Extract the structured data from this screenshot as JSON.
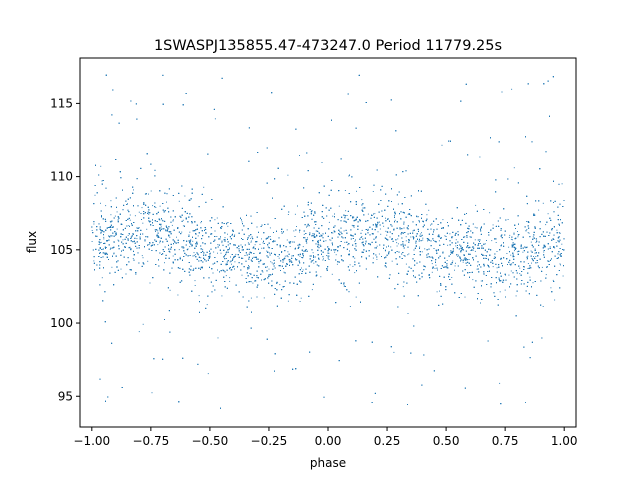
{
  "chart_data": {
    "type": "scatter",
    "title": "1SWASPJ135855.47-473247.0 Period 11779.25s",
    "xlabel": "phase",
    "ylabel": "flux",
    "xlim": [
      -1.05,
      1.05
    ],
    "ylim": [
      92.9,
      118.1
    ],
    "xticks": [
      -1.0,
      -0.75,
      -0.5,
      -0.25,
      0.0,
      0.25,
      0.5,
      0.75,
      1.0
    ],
    "xtick_labels": [
      "−1.00",
      "−0.75",
      "−0.50",
      "−0.25",
      "0.00",
      "0.25",
      "0.50",
      "0.75",
      "1.00"
    ],
    "yticks": [
      95,
      100,
      105,
      110,
      115
    ],
    "ytick_labels": [
      "95",
      "100",
      "105",
      "110",
      "115"
    ],
    "grid": false,
    "marker_color": "#1f77b4",
    "points_summary": {
      "x_range": [
        -1.0,
        1.0
      ],
      "flux_clip": [
        94.0,
        117.2
      ],
      "mean_flux_at_phase": [
        {
          "x": -1.0,
          "y": 105.6
        },
        {
          "x": -0.75,
          "y": 106.2
        },
        {
          "x": -0.5,
          "y": 105.0
        },
        {
          "x": -0.25,
          "y": 104.4
        },
        {
          "x": 0.0,
          "y": 105.6
        },
        {
          "x": 0.25,
          "y": 106.2
        },
        {
          "x": 0.5,
          "y": 105.0
        },
        {
          "x": 0.75,
          "y": 104.4
        },
        {
          "x": 1.0,
          "y": 105.6
        }
      ]
    }
  }
}
